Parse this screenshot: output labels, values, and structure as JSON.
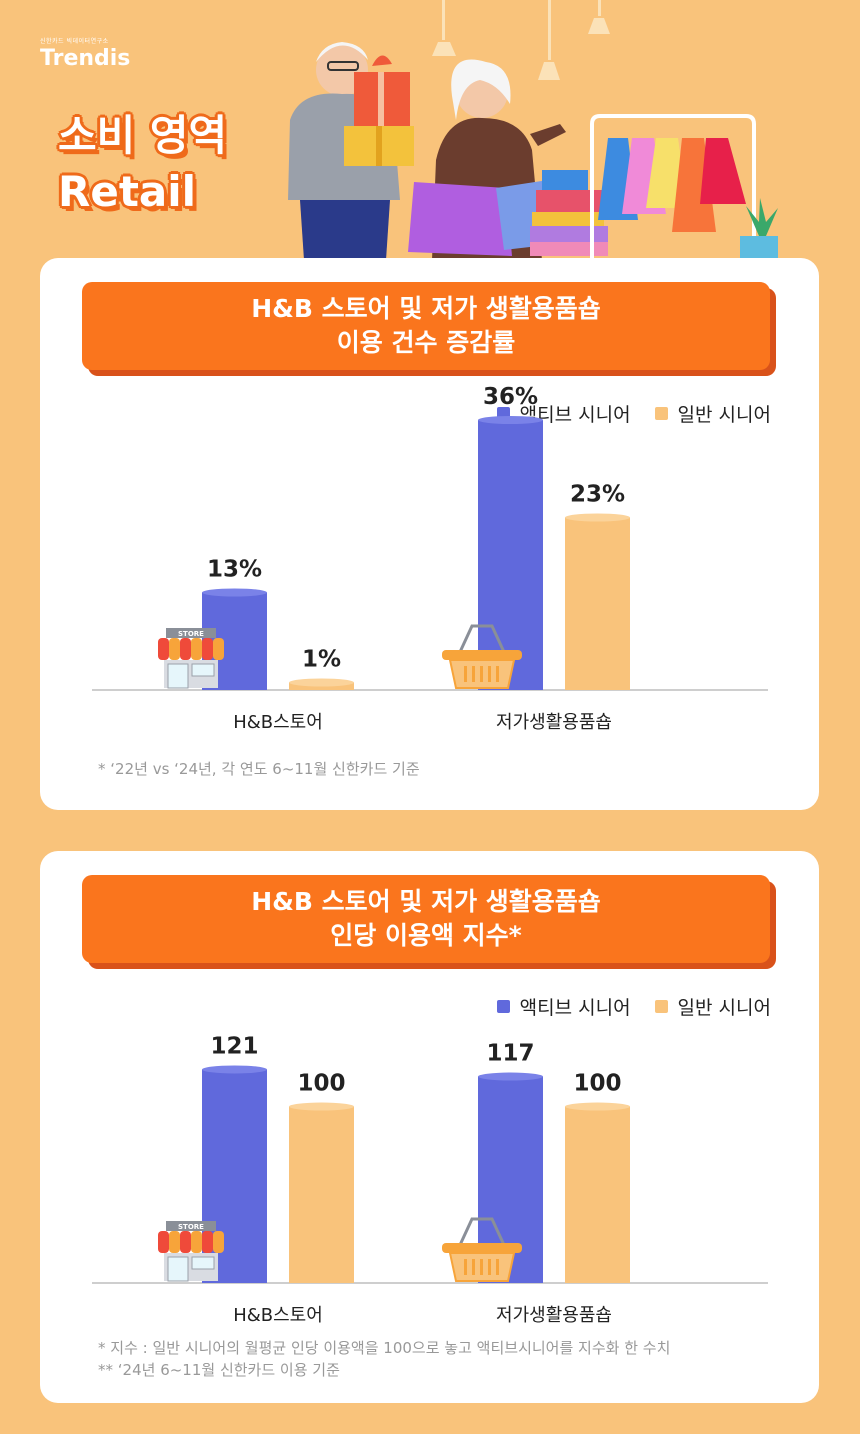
{
  "brand": {
    "sub": "신한카드 빅데이터연구소",
    "logo": "Trendis"
  },
  "hero": {
    "line1": "소비 영역",
    "line2": "Retail"
  },
  "colors": {
    "active": "#6069dc",
    "general": "#f9c37b",
    "accent": "#fa751d"
  },
  "chart_data": [
    {
      "type": "bar",
      "title_line1": "H&B 스토어 및 저가 생활용품숍",
      "title_line2": "이용 건수 증감률",
      "categories": [
        "H&B스토어",
        "저가생활용품숍"
      ],
      "series": [
        {
          "name": "액티브 시니어",
          "values": [
            13,
            36
          ],
          "labels": [
            "13%",
            "36%"
          ]
        },
        {
          "name": "일반 시니어",
          "values": [
            1,
            23
          ],
          "labels": [
            "1%",
            "23%"
          ]
        }
      ],
      "ylim": [
        0,
        40
      ],
      "footnotes": [
        "* ‘22년 vs ‘24년, 각 연도 6~11월 신한카드 기준"
      ]
    },
    {
      "type": "bar",
      "title_line1": "H&B 스토어 및 저가 생활용품숍",
      "title_line2": "인당 이용액 지수*",
      "categories": [
        "H&B스토어",
        "저가생활용품숍"
      ],
      "series": [
        {
          "name": "액티브 시니어",
          "values": [
            121,
            117
          ],
          "labels": [
            "121",
            "117"
          ]
        },
        {
          "name": "일반 시니어",
          "values": [
            100,
            100
          ],
          "labels": [
            "100",
            "100"
          ]
        }
      ],
      "ylim": [
        0,
        170
      ],
      "footnotes": [
        "* 지수 : 일반 시니어의 월평균 인당 이용액을 100으로 놓고 액티브시니어를 지수화 한 수치",
        "** ‘24년 6~11월 신한카드 이용 기준"
      ]
    }
  ]
}
